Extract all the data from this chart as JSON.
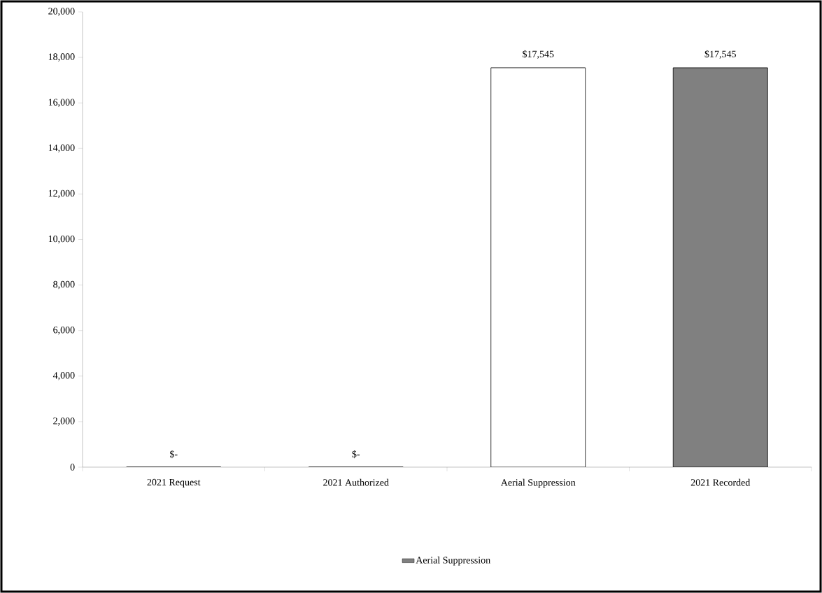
{
  "chart_data": {
    "type": "bar",
    "categories": [
      "2021 Request",
      "2021 Authorized",
      "Aerial Suppression",
      "2021 Recorded"
    ],
    "series": [
      {
        "name": "Aerial Suppression",
        "color": "#808080",
        "colors": [
          "#ffffff",
          "#ffffff",
          "#ffffff",
          "#808080"
        ],
        "values": [
          0,
          0,
          17545,
          17545
        ],
        "value_labels": [
          "$-",
          "$-",
          "$17,545",
          "$17,545"
        ]
      }
    ],
    "ylim": [
      0,
      20000
    ],
    "yticks": [
      0,
      {
        "value": 2000,
        "label": "2,000"
      },
      {
        "value": 4000,
        "label": "4,000"
      },
      {
        "value": 6000,
        "label": "6,000"
      },
      {
        "value": 8000,
        "label": "8,000"
      },
      {
        "value": 10000,
        "label": "10,000"
      },
      {
        "value": 12000,
        "label": "12,000"
      },
      {
        "value": 14000,
        "label": "14,000"
      },
      {
        "value": 16000,
        "label": "16,000"
      },
      {
        "value": 18000,
        "label": "18,000"
      },
      {
        "value": 20000,
        "label": "20,000"
      }
    ],
    "grid": false,
    "legend": "bottom"
  }
}
